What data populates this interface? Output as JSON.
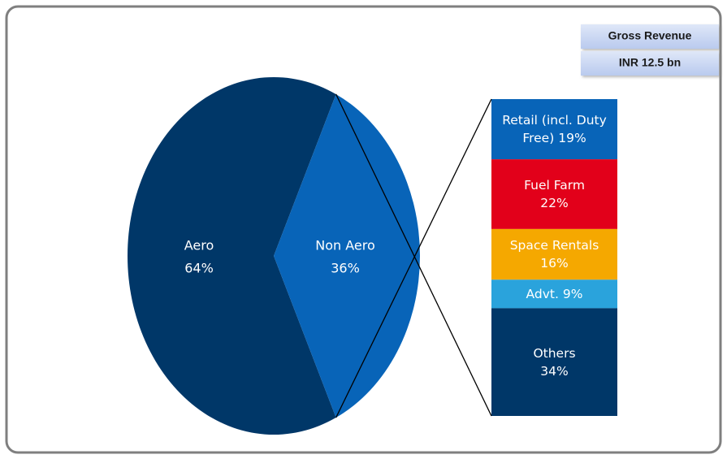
{
  "chart_data": {
    "type": "pie-of-bar",
    "categories": [
      "Aero",
      "Non Aero"
    ],
    "values": [
      64,
      36
    ],
    "value_labels": [
      "64%",
      "36%"
    ],
    "colors": [
      "#003768",
      "#0864b8"
    ],
    "breakdown": {
      "categories": [
        "Retail (incl. Duty Free)",
        "Fuel Farm",
        "Space Rentals",
        "Advt.",
        "Others"
      ],
      "values": [
        19,
        22,
        16,
        9,
        34
      ],
      "value_labels": [
        "19%",
        "22%",
        "16%",
        "9%",
        "34%"
      ],
      "colors": [
        "#0864b8",
        "#e2001a",
        "#f5a800",
        "#2aa3dc",
        "#003768"
      ]
    },
    "annotations": [
      "Gross Revenue",
      "INR 12.5 bn"
    ]
  }
}
